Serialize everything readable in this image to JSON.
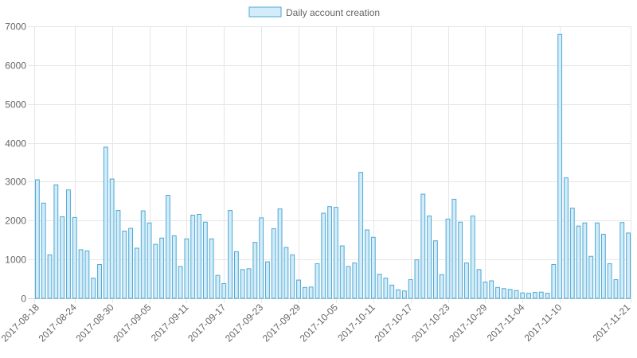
{
  "chart_data": {
    "type": "bar",
    "title": "",
    "xlabel": "",
    "ylabel": "",
    "ylim": [
      0,
      7000
    ],
    "yticks": [
      0,
      1000,
      2000,
      3000,
      4000,
      5000,
      6000,
      7000
    ],
    "grid": true,
    "legend_position": "top-center",
    "colors": {
      "fill": "#d2ecf9",
      "stroke": "#4ea8d3",
      "grid": "#e6e6e6",
      "text": "#666666"
    },
    "tick_dates": [
      "2017-08-18",
      "2017-08-24",
      "2017-08-30",
      "2017-09-05",
      "2017-09-11",
      "2017-09-17",
      "2017-09-23",
      "2017-09-29",
      "2017-10-05",
      "2017-10-11",
      "2017-10-17",
      "2017-10-23",
      "2017-10-29",
      "2017-11-04",
      "2017-11-10",
      "2017-11-21"
    ],
    "series": [
      {
        "name": "Daily account creation",
        "categories": [
          "2017-08-18",
          "2017-08-19",
          "2017-08-20",
          "2017-08-21",
          "2017-08-22",
          "2017-08-23",
          "2017-08-24",
          "2017-08-25",
          "2017-08-26",
          "2017-08-27",
          "2017-08-28",
          "2017-08-29",
          "2017-08-30",
          "2017-08-31",
          "2017-09-01",
          "2017-09-02",
          "2017-09-03",
          "2017-09-04",
          "2017-09-05",
          "2017-09-06",
          "2017-09-07",
          "2017-09-08",
          "2017-09-09",
          "2017-09-10",
          "2017-09-11",
          "2017-09-12",
          "2017-09-13",
          "2017-09-14",
          "2017-09-15",
          "2017-09-16",
          "2017-09-17",
          "2017-09-18",
          "2017-09-19",
          "2017-09-20",
          "2017-09-21",
          "2017-09-22",
          "2017-09-23",
          "2017-09-24",
          "2017-09-25",
          "2017-09-26",
          "2017-09-27",
          "2017-09-28",
          "2017-09-29",
          "2017-09-30",
          "2017-10-01",
          "2017-10-02",
          "2017-10-03",
          "2017-10-04",
          "2017-10-05",
          "2017-10-06",
          "2017-10-07",
          "2017-10-08",
          "2017-10-09",
          "2017-10-10",
          "2017-10-11",
          "2017-10-12",
          "2017-10-13",
          "2017-10-14",
          "2017-10-15",
          "2017-10-16",
          "2017-10-17",
          "2017-10-18",
          "2017-10-19",
          "2017-10-20",
          "2017-10-21",
          "2017-10-22",
          "2017-10-23",
          "2017-10-24",
          "2017-10-25",
          "2017-10-26",
          "2017-10-27",
          "2017-10-28",
          "2017-10-29",
          "2017-10-30",
          "2017-10-31",
          "2017-11-01",
          "2017-11-02",
          "2017-11-03",
          "2017-11-04",
          "2017-11-05",
          "2017-11-06",
          "2017-11-07",
          "2017-11-08",
          "2017-11-09",
          "2017-11-10",
          "2017-11-11",
          "2017-11-12",
          "2017-11-13",
          "2017-11-14",
          "2017-11-15",
          "2017-11-16",
          "2017-11-17",
          "2017-11-18",
          "2017-11-19",
          "2017-11-20",
          "2017-11-21"
        ],
        "values": [
          3050,
          2450,
          1120,
          2920,
          2100,
          2790,
          2080,
          1250,
          1220,
          520,
          870,
          3890,
          3070,
          2260,
          1730,
          1800,
          1290,
          2250,
          1940,
          1390,
          1550,
          2650,
          1610,
          820,
          1530,
          2140,
          2160,
          1960,
          1530,
          590,
          380,
          2260,
          1200,
          740,
          760,
          1440,
          2070,
          940,
          1790,
          2300,
          1310,
          1120,
          470,
          280,
          290,
          890,
          2190,
          2360,
          2340,
          1350,
          820,
          910,
          3240,
          1760,
          1570,
          620,
          520,
          340,
          220,
          190,
          480,
          990,
          2680,
          2120,
          1480,
          610,
          2040,
          2550,
          1960,
          910,
          2120,
          740,
          420,
          450,
          280,
          250,
          230,
          200,
          140,
          130,
          150,
          160,
          130,
          870,
          6790,
          3100,
          2320,
          1860,
          1940,
          1080,
          1940,
          1650,
          890,
          480,
          1950,
          1680
        ]
      }
    ]
  }
}
